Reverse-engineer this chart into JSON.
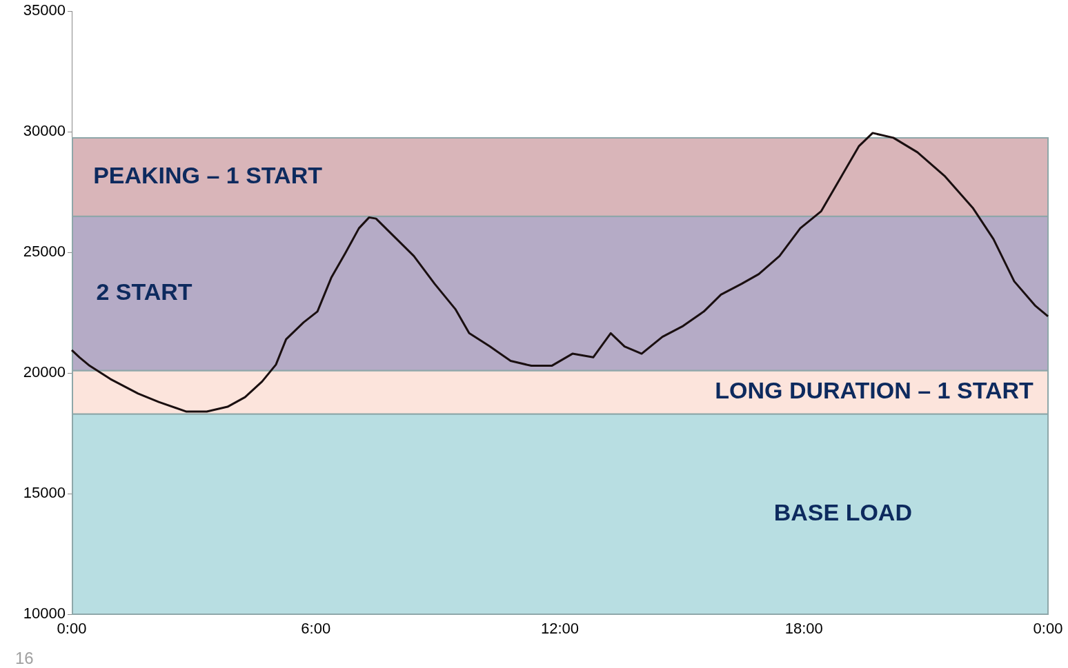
{
  "chart_data": {
    "type": "line",
    "xlim": [
      0,
      24
    ],
    "xticks": [
      {
        "value": 0,
        "label": "0:00"
      },
      {
        "value": 6,
        "label": "6:00"
      },
      {
        "value": 12,
        "label": "12:00"
      },
      {
        "value": 18,
        "label": "18:00"
      },
      {
        "value": 24,
        "label": "0:00"
      }
    ],
    "ylim": [
      10000,
      35000
    ],
    "yticks": [
      10000,
      15000,
      20000,
      25000,
      30000,
      35000
    ],
    "marker": "none",
    "line_style": "solid",
    "series": [
      {
        "color": "#1a0f10",
        "x": [
          0,
          0.19,
          0.44,
          0.95,
          1.63,
          2.14,
          2.82,
          3.32,
          3.83,
          4.26,
          4.68,
          5.02,
          5.27,
          5.7,
          6.04,
          6.38,
          6.72,
          7.06,
          7.31,
          7.48,
          7.9,
          8.41,
          8.92,
          9.43,
          9.77,
          10.28,
          10.79,
          11.3,
          11.8,
          12.31,
          12.82,
          13.25,
          13.59,
          14.01,
          14.52,
          15.03,
          15.54,
          15.96,
          16.47,
          16.89,
          17.4,
          17.91,
          18.42,
          18.92,
          19.35,
          19.69,
          20.2,
          20.79,
          21.47,
          22.15,
          22.66,
          23.17,
          23.68,
          24
        ],
        "values": [
          20950,
          20650,
          20300,
          19750,
          19150,
          18800,
          18400,
          18400,
          18600,
          19000,
          19650,
          20350,
          21400,
          22100,
          22550,
          23950,
          24950,
          26000,
          26450,
          26400,
          25700,
          24850,
          23700,
          22650,
          21650,
          21100,
          20500,
          20300,
          20300,
          20800,
          20650,
          21650,
          21100,
          20800,
          21500,
          21950,
          22550,
          23250,
          23700,
          24100,
          24850,
          26000,
          26700,
          28150,
          29400,
          29950,
          29750,
          29150,
          28150,
          26850,
          25550,
          23800,
          22800,
          22350
        ]
      }
    ],
    "bands": [
      {
        "axis": "y",
        "from": 10000,
        "to": 18300,
        "label": "BASE LOAD",
        "color": "#b8dee2"
      },
      {
        "axis": "y",
        "from": 18300,
        "to": 20100,
        "label": "LONG DURATION – 1 START",
        "color": "#fce4dc"
      },
      {
        "axis": "y",
        "from": 20100,
        "to": 26500,
        "label": "2 START",
        "color": "#b5abc6"
      },
      {
        "axis": "y",
        "from": 26500,
        "to": 29750,
        "label": "PEAKING – 1 START",
        "color": "#d9b5b9"
      }
    ],
    "annotations": [
      "16"
    ]
  }
}
